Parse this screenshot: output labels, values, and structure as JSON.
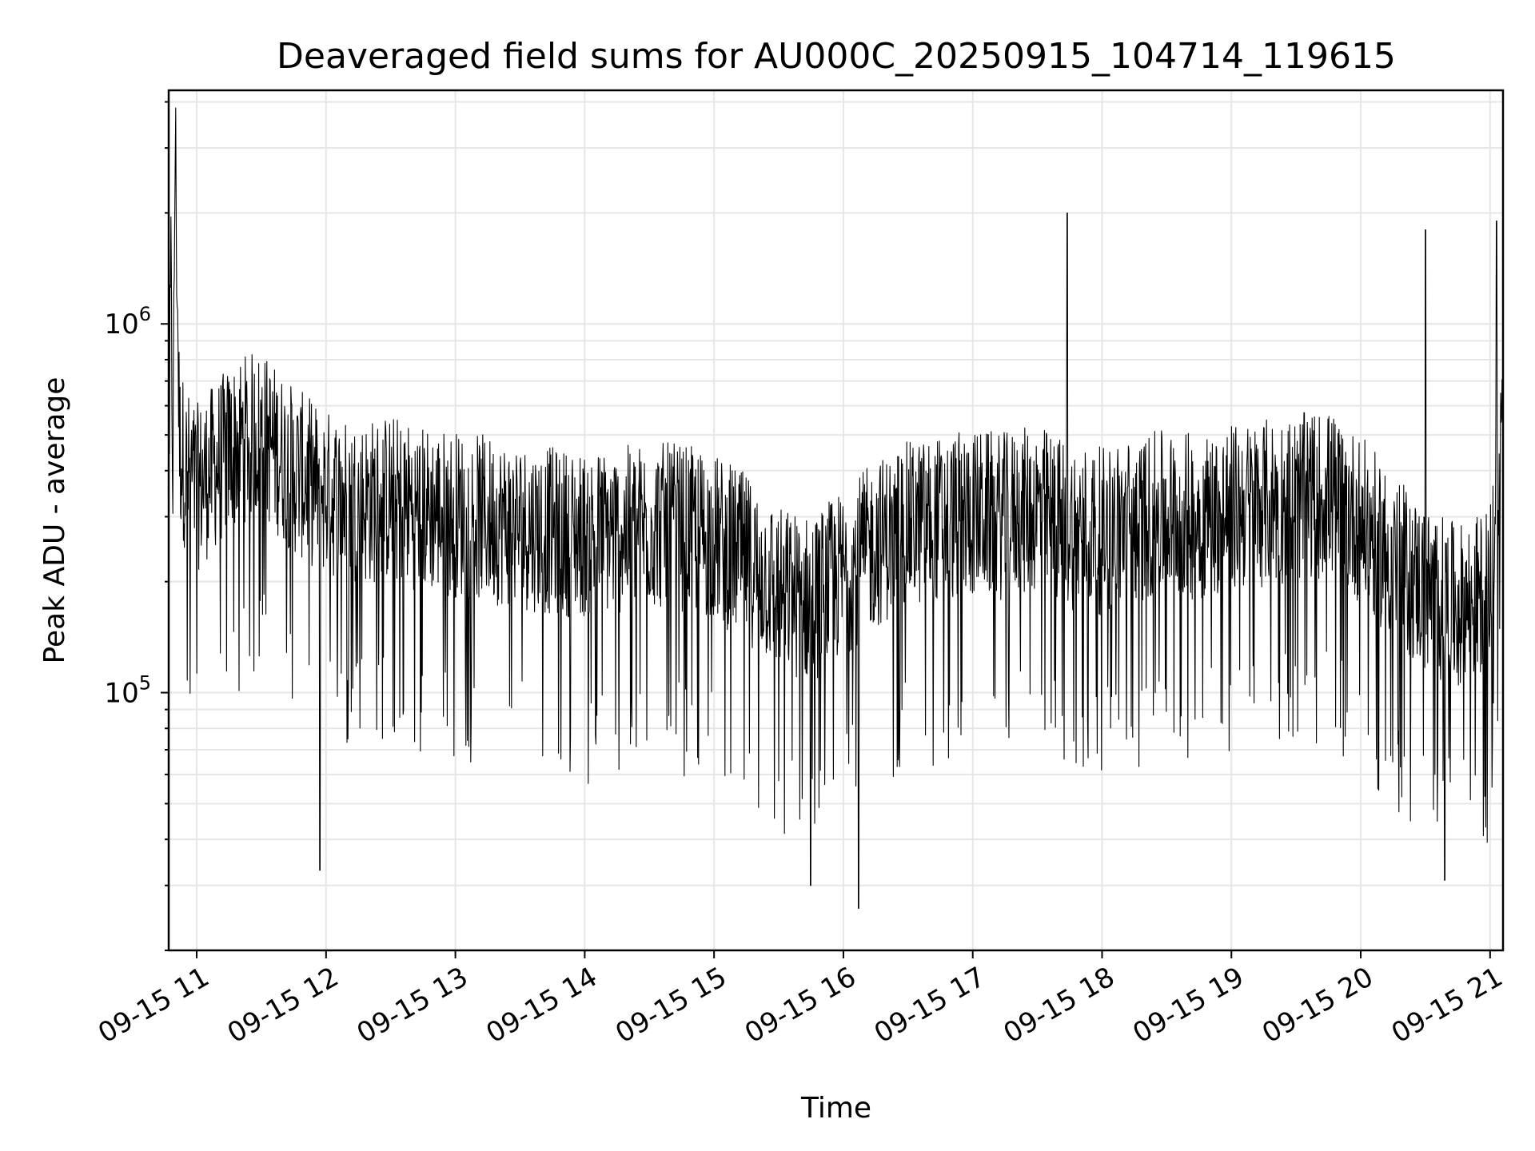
{
  "chart_data": {
    "type": "line",
    "title": "Deaveraged field sums for AU000C_20250915_104714_119615",
    "xlabel": "Time",
    "ylabel": "Peak ADU - average",
    "x_type": "time",
    "xlim": [
      "2025-09-15T10:47:00",
      "2025-09-15T21:06:00"
    ],
    "x_ticks": [
      {
        "time": "2025-09-15T11:00",
        "label": "09-15 11"
      },
      {
        "time": "2025-09-15T12:00",
        "label": "09-15 12"
      },
      {
        "time": "2025-09-15T13:00",
        "label": "09-15 13"
      },
      {
        "time": "2025-09-15T14:00",
        "label": "09-15 14"
      },
      {
        "time": "2025-09-15T15:00",
        "label": "09-15 15"
      },
      {
        "time": "2025-09-15T16:00",
        "label": "09-15 16"
      },
      {
        "time": "2025-09-15T17:00",
        "label": "09-15 17"
      },
      {
        "time": "2025-09-15T18:00",
        "label": "09-15 18"
      },
      {
        "time": "2025-09-15T19:00",
        "label": "09-15 19"
      },
      {
        "time": "2025-09-15T20:00",
        "label": "09-15 20"
      },
      {
        "time": "2025-09-15T21:00",
        "label": "09-15 21"
      }
    ],
    "y_scale": "log",
    "ylim": [
      20000,
      4300000
    ],
    "y_ticks": [
      {
        "value": 100000,
        "base": "10",
        "exp": "5"
      },
      {
        "value": 1000000,
        "base": "10",
        "exp": "6"
      }
    ],
    "grid": true,
    "series": [
      {
        "color": "#000000",
        "x": [
          "10:47",
          "10:48",
          "10:49",
          "10:50",
          "10:52",
          "10:55",
          "11:00",
          "11:10",
          "11:20",
          "11:30",
          "11:45",
          "12:00",
          "12:15",
          "12:30",
          "12:45",
          "13:00",
          "13:15",
          "13:30",
          "13:45",
          "14:00",
          "14:15",
          "14:30",
          "14:45",
          "15:00",
          "15:15",
          "15:30",
          "15:45",
          "16:00",
          "16:15",
          "16:30",
          "16:45",
          "17:00",
          "17:15",
          "17:30",
          "17:45",
          "18:00",
          "18:15",
          "18:30",
          "18:45",
          "19:00",
          "19:15",
          "19:30",
          "19:45",
          "20:00",
          "20:15",
          "20:30",
          "20:45",
          "21:00",
          "21:05"
        ],
        "y": [
          300000,
          1300000,
          350000,
          3200000,
          450000,
          380000,
          340000,
          400000,
          460000,
          480000,
          380000,
          330000,
          310000,
          320000,
          300000,
          290000,
          280000,
          270000,
          260000,
          255000,
          260000,
          270000,
          265000,
          250000,
          220000,
          180000,
          170000,
          200000,
          240000,
          270000,
          280000,
          290000,
          285000,
          300000,
          270000,
          260000,
          280000,
          290000,
          285000,
          300000,
          310000,
          320000,
          330000,
          280000,
          220000,
          180000,
          160000,
          180000,
          500000
        ],
        "spikes": [
          {
            "x": "17:44",
            "y": 2000000
          },
          {
            "x": "20:30",
            "y": 1800000
          },
          {
            "x": "21:03",
            "y": 1900000
          },
          {
            "x": "16:07",
            "y": 26000
          },
          {
            "x": "15:45",
            "y": 30000
          },
          {
            "x": "11:57",
            "y": 33000
          },
          {
            "x": "20:39",
            "y": 31000
          }
        ],
        "noise_min_factor": 0.22,
        "noise_max_factor": 1.9
      }
    ]
  }
}
